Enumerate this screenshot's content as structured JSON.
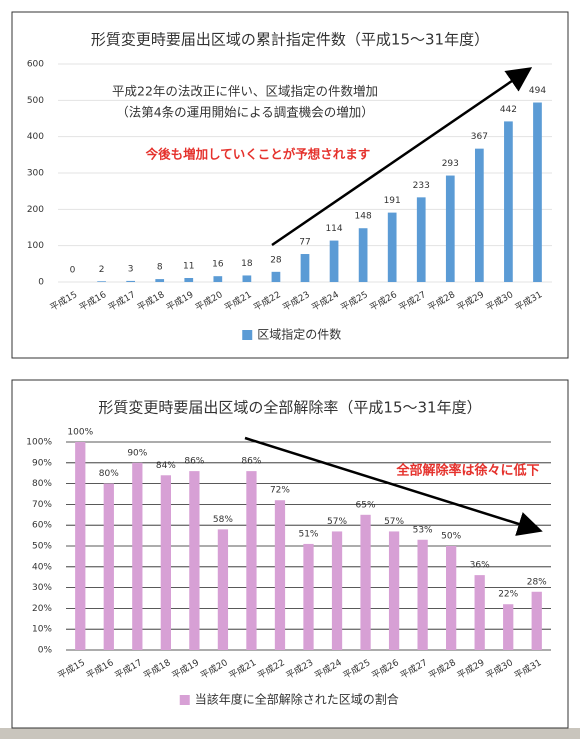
{
  "chart_data": [
    {
      "type": "bar",
      "title": "形質変更時要届出区域の累計指定件数（平成15～31年度）",
      "categories": [
        "平成15",
        "平成16",
        "平成17",
        "平成18",
        "平成19",
        "平成20",
        "平成21",
        "平成22",
        "平成23",
        "平成24",
        "平成25",
        "平成26",
        "平成27",
        "平成28",
        "平成29",
        "平成30",
        "平成31"
      ],
      "series": [
        {
          "name": "区域指定の件数",
          "color": "#5b9bd5",
          "values": [
            0,
            2,
            3,
            8,
            11,
            16,
            18,
            28,
            77,
            114,
            148,
            191,
            233,
            293,
            367,
            442,
            494
          ]
        }
      ],
      "ylim": [
        0,
        600
      ],
      "yticks": [
        0,
        100,
        200,
        300,
        400,
        500,
        600
      ],
      "grid": true,
      "annotations": [
        "平成22年の法改正に伴い、区域指定の件数増加",
        "（法第4条の運用開始による調査機会の増加）",
        "今後も増加していくことが予想されます"
      ]
    },
    {
      "type": "bar",
      "title": "形質変更時要届出区域の全部解除率（平成15～31年度）",
      "categories": [
        "平成15",
        "平成16",
        "平成17",
        "平成18",
        "平成19",
        "平成20",
        "平成21",
        "平成22",
        "平成23",
        "平成24",
        "平成25",
        "平成26",
        "平成27",
        "平成28",
        "平成29",
        "平成30",
        "平成31"
      ],
      "series": [
        {
          "name": "当該年度に全部解除された区域の割合",
          "color": "#d7a0d5",
          "values": [
            100,
            80,
            90,
            84,
            86,
            58,
            86,
            72,
            51,
            57,
            65,
            57,
            53,
            50,
            36,
            22,
            28
          ],
          "value_labels": [
            "100%",
            "80%",
            "90%",
            "84%",
            "86%",
            "58%",
            "86%",
            "72%",
            "51%",
            "57%",
            "65%",
            "57%",
            "53%",
            "50%",
            "36%",
            "22%",
            "28%"
          ]
        }
      ],
      "ylim": [
        0,
        100
      ],
      "yticks": [
        {
          "value": 0,
          "label": "0%"
        },
        {
          "value": 10,
          "label": "10%"
        },
        {
          "value": 20,
          "label": "20%"
        },
        {
          "value": 30,
          "label": "30%"
        },
        {
          "value": 40,
          "label": "40%"
        },
        {
          "value": 50,
          "label": "50%"
        },
        {
          "value": 60,
          "label": "60%"
        },
        {
          "value": 70,
          "label": "70%"
        },
        {
          "value": 80,
          "label": "80%"
        },
        {
          "value": 90,
          "label": "90%"
        },
        {
          "value": 100,
          "label": "100%"
        }
      ],
      "grid": true,
      "annotations": [
        "全部解除率は徐々に低下"
      ]
    }
  ]
}
